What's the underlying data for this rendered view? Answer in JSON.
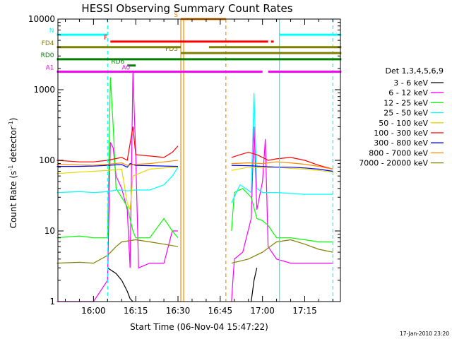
{
  "chart_data": {
    "type": "line",
    "title": "HESSI Observing Summary Count Rates",
    "xlabel": "Start Time (06-Nov-04 15:47:22)",
    "ylabel": "Count Rate (s⁻¹ detector⁻¹)",
    "ylabel_main": "Count Rate (s",
    "ylabel_sup1": "-1",
    "ylabel_mid": " detector",
    "ylabel_sup2": "-1",
    "ylabel_end": ")",
    "y_scale": "log",
    "ylim": [
      1,
      10000
    ],
    "xlim": [
      "15:47:22",
      "17:27:40"
    ],
    "x_ticks": [
      "16:00",
      "16:15",
      "16:30",
      "16:45",
      "17:00",
      "17:15"
    ],
    "y_ticks": [
      "1",
      "10",
      "100",
      "1000",
      "10000"
    ],
    "timestamp": "17-Jan-2010 23:20",
    "legend": {
      "title": "Det 1,3,4,5,6,9",
      "position": "right",
      "entries": [
        {
          "label": "3 - 6 keV",
          "color": "#000000"
        },
        {
          "label": "6 - 12 keV",
          "color": "#ff00ff"
        },
        {
          "label": "12 - 25 keV",
          "color": "#00ff00"
        },
        {
          "label": "25 - 50 keV",
          "color": "#00ffff"
        },
        {
          "label": "50 - 100 keV",
          "color": "#e6d600"
        },
        {
          "label": "100 - 300 keV",
          "color": "#ff0000"
        },
        {
          "label": "300 - 800 keV",
          "color": "#0000ff"
        },
        {
          "label": "800 - 7000 keV",
          "color": "#ff8c00"
        },
        {
          "label": "7000 - 20000 keV",
          "color": "#808000"
        }
      ]
    },
    "flags": [
      {
        "label": "S",
        "color": "#ff8c00",
        "y": 10000,
        "segments": [
          [
            "16:31",
            "16:47"
          ]
        ]
      },
      {
        "label": "N",
        "color": "#00ffff",
        "y": 6000,
        "segments": [
          [
            "15:47",
            "16:05"
          ],
          [
            "17:06",
            "17:28"
          ]
        ]
      },
      {
        "label": "F",
        "color": "#ff0000",
        "y": 4800,
        "segments": [
          [
            "16:06",
            "17:02"
          ],
          [
            "17:03",
            "17:04"
          ]
        ]
      },
      {
        "label": "FD4",
        "color": "#808000",
        "y": 4000,
        "segments": [
          [
            "15:47",
            "16:31"
          ],
          [
            "16:41",
            "17:28"
          ]
        ]
      },
      {
        "label": "FD5",
        "color": "#808000",
        "y": 3300,
        "segments": [
          [
            "16:31",
            "17:28"
          ]
        ]
      },
      {
        "label": "RD0",
        "color": "#008000",
        "y": 2700,
        "segments": [
          [
            "15:47",
            "17:28"
          ]
        ]
      },
      {
        "label": "RD6",
        "color": "#008000",
        "y": 2200,
        "segments": [
          [
            "16:12",
            "16:15"
          ]
        ]
      },
      {
        "label": "A0",
        "color": "#ff00ff",
        "y": 1800,
        "segments": [
          [
            "16:14",
            "16:31"
          ]
        ]
      },
      {
        "label": "A1",
        "color": "#ff00ff",
        "y": 1800,
        "segments": [
          [
            "15:47",
            "17:00"
          ],
          [
            "17:02",
            "17:28"
          ]
        ]
      }
    ],
    "vertical_lines": [
      {
        "time": "16:05",
        "color": "#00ffff",
        "style": "dashed"
      },
      {
        "time": "16:31",
        "color": "#ff8c00",
        "style": "solid"
      },
      {
        "time": "16:32",
        "color": "#ff8c00",
        "style": "solid"
      },
      {
        "time": "16:47",
        "color": "#ff8c00",
        "style": "dashed"
      },
      {
        "time": "17:06",
        "color": "#00ffff",
        "style": "solid"
      },
      {
        "time": "17:25",
        "color": "#00ffff",
        "style": "dashed"
      }
    ],
    "series": [
      {
        "name": "3 - 6 keV",
        "color": "#000000",
        "segments": [
          [
            [
              "16:05",
              3
            ],
            [
              "16:08",
              2.5
            ],
            [
              "16:10",
              2
            ],
            [
              "16:12",
              1.4
            ],
            [
              "16:13",
              1.1
            ],
            [
              "16:14",
              1
            ]
          ],
          [
            [
              "16:56",
              1
            ],
            [
              "16:57",
              2
            ],
            [
              "16:58",
              3
            ]
          ]
        ]
      },
      {
        "name": "6 - 12 keV",
        "color": "#ff00ff",
        "segments": [
          [
            [
              "15:47",
              1
            ],
            [
              "16:00",
              1
            ],
            [
              "16:05",
              2
            ],
            [
              "16:06",
              180
            ],
            [
              "16:07",
              150
            ],
            [
              "16:08",
              60
            ],
            [
              "16:10",
              40
            ],
            [
              "16:12",
              20
            ],
            [
              "16:13",
              3
            ],
            [
              "16:14",
              1800
            ],
            [
              "16:15",
              120
            ],
            [
              "16:16",
              3
            ],
            [
              "16:20",
              3.5
            ],
            [
              "16:25",
              3.5
            ],
            [
              "16:28",
              10
            ],
            [
              "16:30",
              10
            ]
          ],
          [
            [
              "16:49",
              1
            ],
            [
              "16:50",
              4
            ],
            [
              "16:53",
              5
            ],
            [
              "16:56",
              15
            ],
            [
              "16:57",
              300
            ],
            [
              "16:58",
              20
            ],
            [
              "17:00",
              50
            ],
            [
              "17:01",
              200
            ],
            [
              "17:02",
              6
            ],
            [
              "17:05",
              4
            ],
            [
              "17:10",
              3.5
            ],
            [
              "17:15",
              3.5
            ],
            [
              "17:20",
              3.5
            ],
            [
              "17:25",
              3.5
            ]
          ]
        ]
      },
      {
        "name": "12 - 25 keV",
        "color": "#00ff00",
        "segments": [
          [
            [
              "15:47",
              8
            ],
            [
              "15:55",
              8.5
            ],
            [
              "16:00",
              8
            ],
            [
              "16:05",
              8
            ],
            [
              "16:06",
              1500
            ],
            [
              "16:07",
              300
            ],
            [
              "16:08",
              40
            ],
            [
              "16:10",
              30
            ],
            [
              "16:12",
              22
            ],
            [
              "16:14",
              10
            ],
            [
              "16:15",
              8
            ],
            [
              "16:20",
              8
            ],
            [
              "16:25",
              15
            ],
            [
              "16:28",
              10
            ],
            [
              "16:30",
              8
            ]
          ],
          [
            [
              "16:49",
              10
            ],
            [
              "16:50",
              35
            ],
            [
              "16:53",
              40
            ],
            [
              "16:56",
              30
            ],
            [
              "16:58",
              15
            ],
            [
              "17:00",
              14
            ],
            [
              "17:02",
              12
            ],
            [
              "17:05",
              8
            ],
            [
              "17:10",
              8
            ],
            [
              "17:15",
              7.5
            ],
            [
              "17:20",
              7
            ],
            [
              "17:25",
              7
            ]
          ]
        ]
      },
      {
        "name": "25 - 50 keV",
        "color": "#00ffff",
        "segments": [
          [
            [
              "15:47",
              35
            ],
            [
              "15:55",
              36
            ],
            [
              "16:00",
              35
            ],
            [
              "16:05",
              36
            ],
            [
              "16:08",
              38
            ],
            [
              "16:12",
              37
            ],
            [
              "16:15",
              38
            ],
            [
              "16:20",
              38
            ],
            [
              "16:25",
              45
            ],
            [
              "16:28",
              60
            ],
            [
              "16:30",
              80
            ]
          ],
          [
            [
              "16:49",
              25
            ],
            [
              "16:52",
              45
            ],
            [
              "16:54",
              40
            ],
            [
              "16:56",
              35
            ],
            [
              "16:57",
              900
            ],
            [
              "16:58",
              40
            ],
            [
              "17:00",
              35
            ],
            [
              "17:05",
              35
            ],
            [
              "17:10",
              34
            ],
            [
              "17:15",
              33
            ],
            [
              "17:20",
              33
            ],
            [
              "17:25",
              33
            ]
          ]
        ]
      },
      {
        "name": "50 - 100 keV",
        "color": "#e6d600",
        "segments": [
          [
            [
              "15:47",
              65
            ],
            [
              "15:55",
              68
            ],
            [
              "16:00",
              70
            ],
            [
              "16:05",
              72
            ],
            [
              "16:10",
              75
            ],
            [
              "16:12",
              25
            ],
            [
              "16:13",
              20
            ],
            [
              "16:14",
              60
            ],
            [
              "16:20",
              75
            ],
            [
              "16:25",
              78
            ],
            [
              "16:30",
              80
            ]
          ],
          [
            [
              "16:49",
              72
            ],
            [
              "16:55",
              80
            ],
            [
              "17:00",
              78
            ],
            [
              "17:05",
              80
            ],
            [
              "17:10",
              77
            ],
            [
              "17:15",
              75
            ],
            [
              "17:20",
              72
            ],
            [
              "17:25",
              68
            ]
          ]
        ]
      },
      {
        "name": "100 - 300 keV",
        "color": "#ff0000",
        "segments": [
          [
            [
              "15:47",
              100
            ],
            [
              "15:55",
              95
            ],
            [
              "16:00",
              95
            ],
            [
              "16:05",
              100
            ],
            [
              "16:10",
              110
            ],
            [
              "16:12",
              100
            ],
            [
              "16:14",
              300
            ],
            [
              "16:15",
              120
            ],
            [
              "16:20",
              115
            ],
            [
              "16:25",
              110
            ],
            [
              "16:28",
              130
            ],
            [
              "16:30",
              160
            ]
          ],
          [
            [
              "16:49",
              110
            ],
            [
              "16:52",
              120
            ],
            [
              "16:55",
              130
            ],
            [
              "16:58",
              120
            ],
            [
              "17:00",
              110
            ],
            [
              "17:02",
              100
            ],
            [
              "17:05",
              105
            ],
            [
              "17:10",
              110
            ],
            [
              "17:15",
              100
            ],
            [
              "17:20",
              85
            ],
            [
              "17:25",
              75
            ]
          ]
        ]
      },
      {
        "name": "300 - 800 keV",
        "color": "#0000ff",
        "segments": [
          [
            [
              "15:47",
              82
            ],
            [
              "15:55",
              82
            ],
            [
              "16:00",
              83
            ],
            [
              "16:05",
              85
            ],
            [
              "16:10",
              87
            ],
            [
              "16:12",
              80
            ],
            [
              "16:13",
              90
            ],
            [
              "16:15",
              85
            ],
            [
              "16:20",
              84
            ],
            [
              "16:25",
              83
            ],
            [
              "16:30",
              82
            ]
          ],
          [
            [
              "16:49",
              85
            ],
            [
              "16:55",
              84
            ],
            [
              "17:00",
              82
            ],
            [
              "17:05",
              80
            ],
            [
              "17:10",
              80
            ],
            [
              "17:15",
              78
            ],
            [
              "17:20",
              75
            ],
            [
              "17:25",
              70
            ]
          ]
        ]
      },
      {
        "name": "800 - 7000 keV",
        "color": "#ff8c00",
        "segments": [
          [
            [
              "15:47",
              88
            ],
            [
              "15:55",
              86
            ],
            [
              "16:00",
              85
            ],
            [
              "16:05",
              88
            ],
            [
              "16:10",
              92
            ],
            [
              "16:12",
              85
            ],
            [
              "16:15",
              88
            ],
            [
              "16:20",
              90
            ],
            [
              "16:25",
              95
            ],
            [
              "16:30",
              100
            ]
          ],
          [
            [
              "16:49",
              90
            ],
            [
              "16:55",
              92
            ],
            [
              "17:00",
              90
            ],
            [
              "17:05",
              95
            ],
            [
              "17:10",
              92
            ],
            [
              "17:15",
              88
            ],
            [
              "17:20",
              82
            ],
            [
              "17:25",
              75
            ]
          ]
        ]
      },
      {
        "name": "7000 - 20000 keV",
        "color": "#808000",
        "segments": [
          [
            [
              "15:47",
              3.5
            ],
            [
              "15:55",
              3.6
            ],
            [
              "16:00",
              3.5
            ],
            [
              "16:05",
              4.5
            ],
            [
              "16:08",
              6
            ],
            [
              "16:10",
              7
            ],
            [
              "16:15",
              7.5
            ],
            [
              "16:20",
              7
            ],
            [
              "16:25",
              6.5
            ],
            [
              "16:30",
              6
            ]
          ],
          [
            [
              "16:49",
              3.5
            ],
            [
              "16:55",
              4
            ],
            [
              "17:00",
              5
            ],
            [
              "17:05",
              7
            ],
            [
              "17:10",
              7.5
            ],
            [
              "17:15",
              6.5
            ],
            [
              "17:20",
              5.5
            ],
            [
              "17:25",
              5
            ]
          ]
        ]
      }
    ]
  }
}
